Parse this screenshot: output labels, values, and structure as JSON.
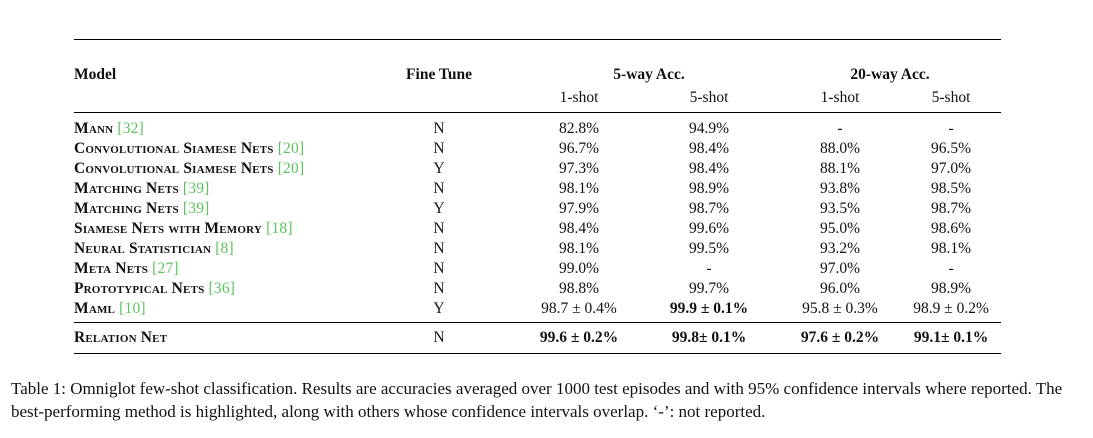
{
  "table": {
    "headers": {
      "model": "Model",
      "fine_tune": "Fine Tune",
      "group_5way": "5-way Acc.",
      "group_20way": "20-way Acc.",
      "sub": [
        "1-shot",
        "5-shot",
        "1-shot",
        "5-shot"
      ]
    },
    "rows": [
      {
        "name": "Mann",
        "cite": "[32]",
        "ft": "N",
        "v": [
          "82.8%",
          "94.9%",
          "-",
          "-"
        ]
      },
      {
        "name": "Convolutional Siamese Nets",
        "cite": "[20]",
        "ft": "N",
        "v": [
          "96.7%",
          "98.4%",
          "88.0%",
          "96.5%"
        ]
      },
      {
        "name": "Convolutional Siamese Nets",
        "cite": "[20]",
        "ft": "Y",
        "v": [
          "97.3%",
          "98.4%",
          "88.1%",
          "97.0%"
        ]
      },
      {
        "name": "Matching Nets",
        "cite": "[39]",
        "ft": "N",
        "v": [
          "98.1%",
          "98.9%",
          "93.8%",
          "98.5%"
        ]
      },
      {
        "name": "Matching Nets",
        "cite": "[39]",
        "ft": "Y",
        "v": [
          "97.9%",
          "98.7%",
          "93.5%",
          "98.7%"
        ]
      },
      {
        "name": "Siamese Nets with Memory",
        "cite": "[18]",
        "ft": "N",
        "v": [
          "98.4%",
          "99.6%",
          "95.0%",
          "98.6%"
        ]
      },
      {
        "name": "Neural Statistician",
        "cite": "[8]",
        "ft": "N",
        "v": [
          "98.1%",
          "99.5%",
          "93.2%",
          "98.1%"
        ]
      },
      {
        "name": "Meta Nets",
        "cite": "[27]",
        "ft": "N",
        "v": [
          "99.0%",
          "-",
          "97.0%",
          "-"
        ]
      },
      {
        "name": "Prototypical Nets",
        "cite": "[36]",
        "ft": "N",
        "v": [
          "98.8%",
          "99.7%",
          "96.0%",
          "98.9%"
        ]
      },
      {
        "name": "Maml",
        "cite": "[10]",
        "ft": "Y",
        "v": [
          "98.7 ± 0.4%",
          "99.9 ± 0.1%",
          "95.8 ± 0.3%",
          "98.9 ± 0.2%"
        ]
      }
    ],
    "final": {
      "name": "Relation Net",
      "ft": "N",
      "v": [
        "99.6 ± 0.2%",
        "99.8± 0.1%",
        "97.6 ± 0.2%",
        "99.1± 0.1%"
      ]
    }
  },
  "caption": "Table 1: Omniglot few-shot classification. Results are accuracies averaged over 1000 test episodes and with 95% confidence intervals where reported. The best-performing method is highlighted, along with others whose confidence intervals overlap. ‘-’: not reported."
}
